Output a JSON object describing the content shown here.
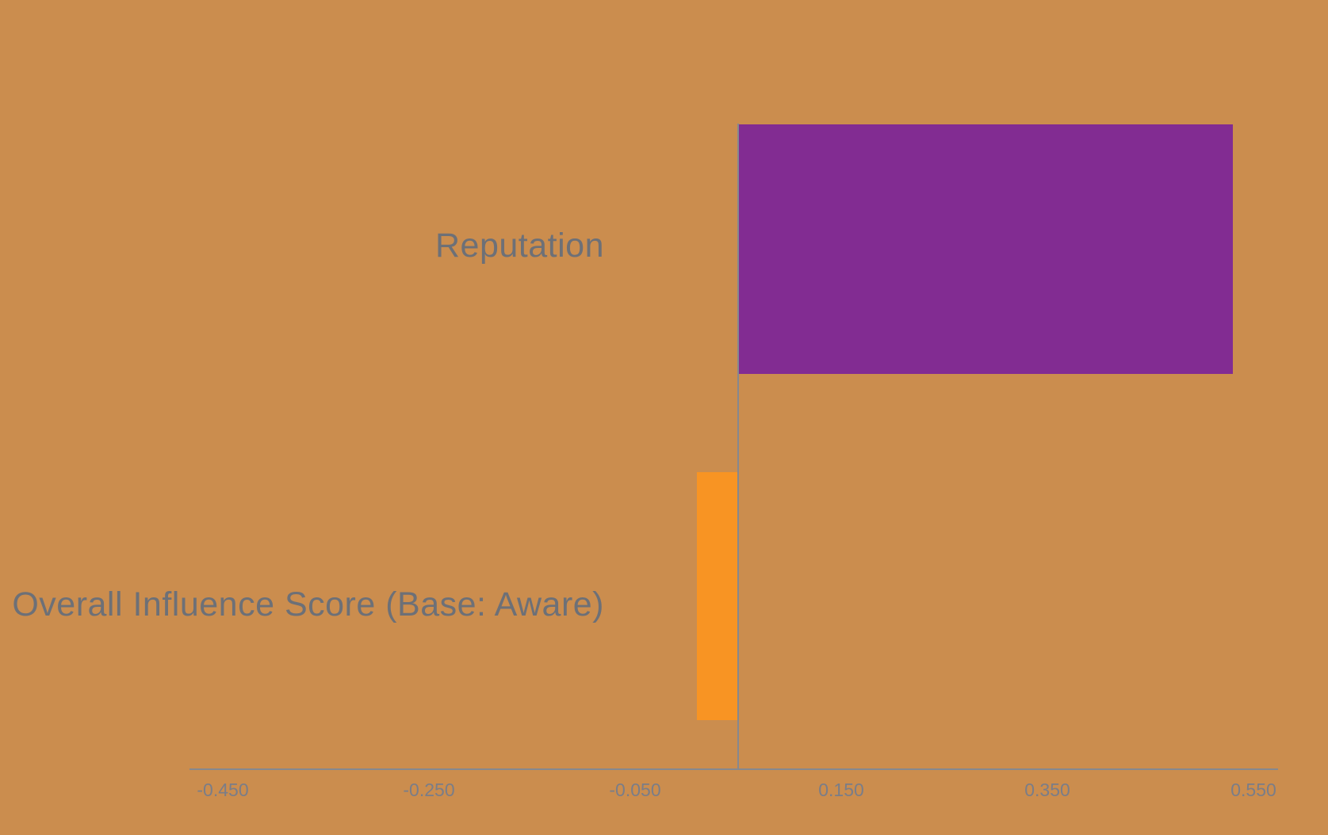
{
  "chart_data": {
    "type": "bar",
    "orientation": "horizontal",
    "title": "",
    "xlabel": "",
    "ylabel": "",
    "categories": [
      "Reputation",
      "Overall Influence Score (Base: Aware)"
    ],
    "baseline_value": 0.05,
    "bars": [
      {
        "category": "Reputation",
        "base": 0.05,
        "end": 0.53,
        "signed_length": 0.48,
        "color": "#822C92"
      },
      {
        "category": "Overall Influence Score (Base: Aware)",
        "base": 0.05,
        "end": 0.01,
        "signed_length": -0.04,
        "color": "#F89423"
      }
    ],
    "x_axis": {
      "tick_labels": [
        "-0.450",
        "-0.250",
        "-0.050",
        "0.150",
        "0.350",
        "0.550"
      ],
      "tick_values": [
        -0.45,
        -0.25,
        -0.05,
        0.15,
        0.35,
        0.55
      ],
      "tick_step": 0.2,
      "visible_range": [
        -0.482,
        0.574
      ]
    },
    "grid": false,
    "legend": "none"
  },
  "colors": {
    "background": "#CB8D4E",
    "reputation_bar": "#822C92",
    "overall_bar": "#F89423",
    "axis_line": "#85888F",
    "baseline_line": "#85888F",
    "tick_label_text": "#7A7D88",
    "category_label_text": "#6D7077"
  }
}
